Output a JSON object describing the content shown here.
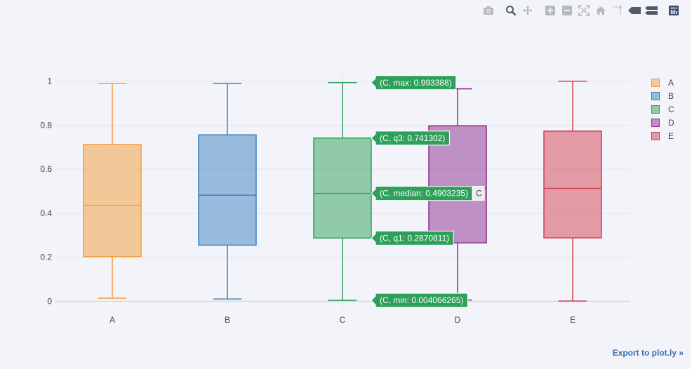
{
  "modebar": {
    "buttons": [
      {
        "name": "camera-icon",
        "title": "Download plot as a png"
      },
      {
        "name": "zoom-icon",
        "title": "Zoom"
      },
      {
        "name": "pan-icon",
        "title": "Pan"
      },
      {
        "name": "zoom-in-icon",
        "title": "Zoom in"
      },
      {
        "name": "zoom-out-icon",
        "title": "Zoom out"
      },
      {
        "name": "autoscale-icon",
        "title": "Autoscale"
      },
      {
        "name": "home-icon",
        "title": "Reset axes"
      },
      {
        "name": "spike-lines-icon",
        "title": "Toggle Spike Lines"
      },
      {
        "name": "hover-closest-icon",
        "title": "Show closest data on hover"
      },
      {
        "name": "hover-compare-icon",
        "title": "Compare data on hover"
      },
      {
        "name": "plotly-logo-icon",
        "title": "Produced with Plotly"
      }
    ]
  },
  "chart_data": {
    "type": "box",
    "categories": [
      "A",
      "B",
      "C",
      "D",
      "E"
    ],
    "series": [
      {
        "name": "A",
        "min": 0.014,
        "q1": 0.203,
        "median": 0.436,
        "q3": 0.712,
        "max": 0.99,
        "color": "#f39b3a"
      },
      {
        "name": "B",
        "min": 0.01,
        "q1": 0.255,
        "median": 0.482,
        "q3": 0.756,
        "max": 0.99,
        "color": "#3d7fbf"
      },
      {
        "name": "C",
        "min": 0.004066265,
        "q1": 0.2870811,
        "median": 0.4903235,
        "q3": 0.741302,
        "max": 0.993388,
        "color": "#2ea05a"
      },
      {
        "name": "D",
        "min": 0.006,
        "q1": 0.265,
        "median": 0.515,
        "q3": 0.797,
        "max": 0.965,
        "color": "#8b2b8f"
      },
      {
        "name": "E",
        "min": 0.001,
        "q1": 0.288,
        "median": 0.513,
        "q3": 0.773,
        "max": 1.0,
        "color": "#d2404f"
      }
    ],
    "yaxis": {
      "range": [
        -0.04,
        1.05
      ],
      "ticks": [
        0,
        0.2,
        0.4,
        0.6,
        0.8,
        1
      ],
      "tick_labels": [
        "0",
        "0.2",
        "0.4",
        "0.6",
        "0.8",
        "1"
      ]
    },
    "grid": true,
    "legend_position": "top-right",
    "hover": {
      "category": "C",
      "color": "#2ea05a",
      "labels": [
        {
          "key": "max",
          "text": "(C, max: 0.993388)"
        },
        {
          "key": "q3",
          "text": "(C, q3: 0.741302)"
        },
        {
          "key": "median",
          "text": "(C, median: 0.4903235)"
        },
        {
          "key": "q1",
          "text": "(C, q1: 0.2870811)"
        },
        {
          "key": "min",
          "text": "(C, min: 0.004066265)"
        }
      ],
      "x_label": "C"
    }
  },
  "legend": {
    "items": [
      {
        "label": "A",
        "color": "#f39b3a"
      },
      {
        "label": "B",
        "color": "#3d7fbf"
      },
      {
        "label": "C",
        "color": "#2ea05a"
      },
      {
        "label": "D",
        "color": "#8b2b8f"
      },
      {
        "label": "E",
        "color": "#d2404f"
      }
    ]
  },
  "footer": {
    "export_link": "Export to plot.ly »"
  }
}
